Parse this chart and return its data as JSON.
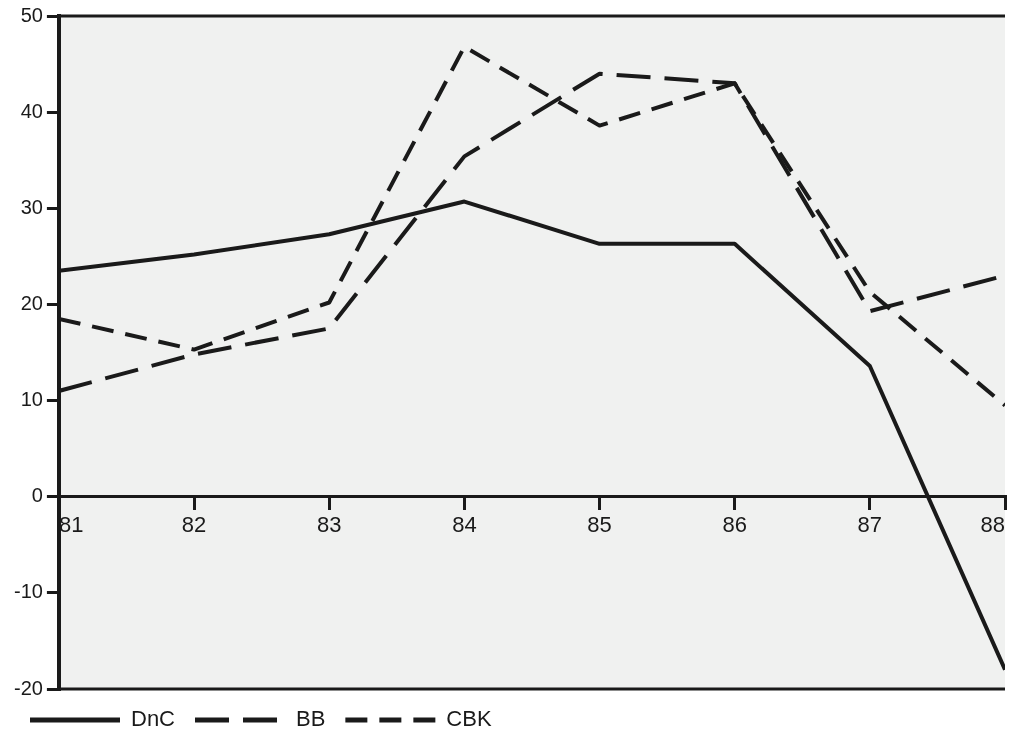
{
  "chart_data": {
    "type": "line",
    "x": [
      81,
      82,
      83,
      84,
      85,
      86,
      87,
      88
    ],
    "xlim": [
      81,
      88
    ],
    "xticks": [
      81,
      82,
      83,
      84,
      85,
      86,
      87,
      88
    ],
    "ylim": [
      -20,
      50
    ],
    "yticks": [
      -20,
      -10,
      0,
      10,
      20,
      30,
      40,
      50
    ],
    "grid": false,
    "legend": "bottom",
    "marker": "none",
    "series": [
      {
        "name": "DnC",
        "color": "#1a1a1a",
        "line_style": "solid",
        "values": [
          23.5,
          25.2,
          27.3,
          30.7,
          26.3,
          26.3,
          13.6,
          -18
        ]
      },
      {
        "name": "BB",
        "color": "#1a1a1a",
        "line_style": "dashed",
        "values": [
          11,
          14.8,
          17.5,
          35.4,
          44,
          43,
          19.3,
          23
        ]
      },
      {
        "name": "CBK",
        "color": "#1a1a1a",
        "line_style": "dashed",
        "values": [
          18.5,
          15.3,
          20.2,
          46.8,
          38.6,
          43,
          21.3,
          9.5
        ]
      }
    ]
  }
}
